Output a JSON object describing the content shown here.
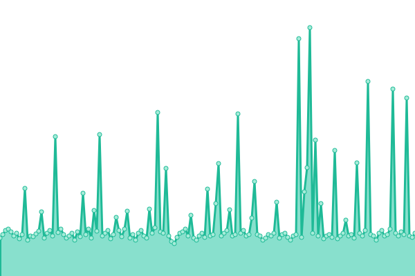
{
  "chart_data": {
    "type": "area",
    "line_color": "#1fba97",
    "fill_color": "#88e0cd",
    "marker_color": "#a6ecd9",
    "ylim": [
      0,
      400
    ],
    "values": [
      55,
      60,
      66,
      68,
      64,
      58,
      62,
      54,
      60,
      127,
      52,
      58,
      57,
      61,
      65,
      93,
      55,
      62,
      66,
      58,
      202,
      63,
      68,
      60,
      55,
      58,
      62,
      52,
      64,
      57,
      120,
      60,
      68,
      55,
      95,
      65,
      205,
      58,
      62,
      66,
      54,
      60,
      85,
      66,
      57,
      68,
      94,
      55,
      60,
      52,
      62,
      66,
      58,
      55,
      97,
      62,
      70,
      237,
      64,
      62,
      156,
      58,
      50,
      47,
      56,
      62,
      64,
      68,
      58,
      88,
      55,
      52,
      58,
      62,
      56,
      126,
      58,
      60,
      105,
      163,
      58,
      62,
      66,
      96,
      58,
      60,
      235,
      62,
      66,
      58,
      60,
      84,
      137,
      60,
      58,
      52,
      55,
      60,
      58,
      62,
      107,
      55,
      60,
      62,
      56,
      52,
      58,
      60,
      344,
      56,
      122,
      157,
      360,
      62,
      197,
      58,
      105,
      54,
      58,
      60,
      56,
      182,
      54,
      58,
      62,
      81,
      58,
      60,
      55,
      164,
      62,
      58,
      66,
      282,
      60,
      58,
      52,
      62,
      66,
      58,
      60,
      68,
      271,
      62,
      58,
      64,
      60,
      258,
      58,
      56,
      62
    ]
  }
}
